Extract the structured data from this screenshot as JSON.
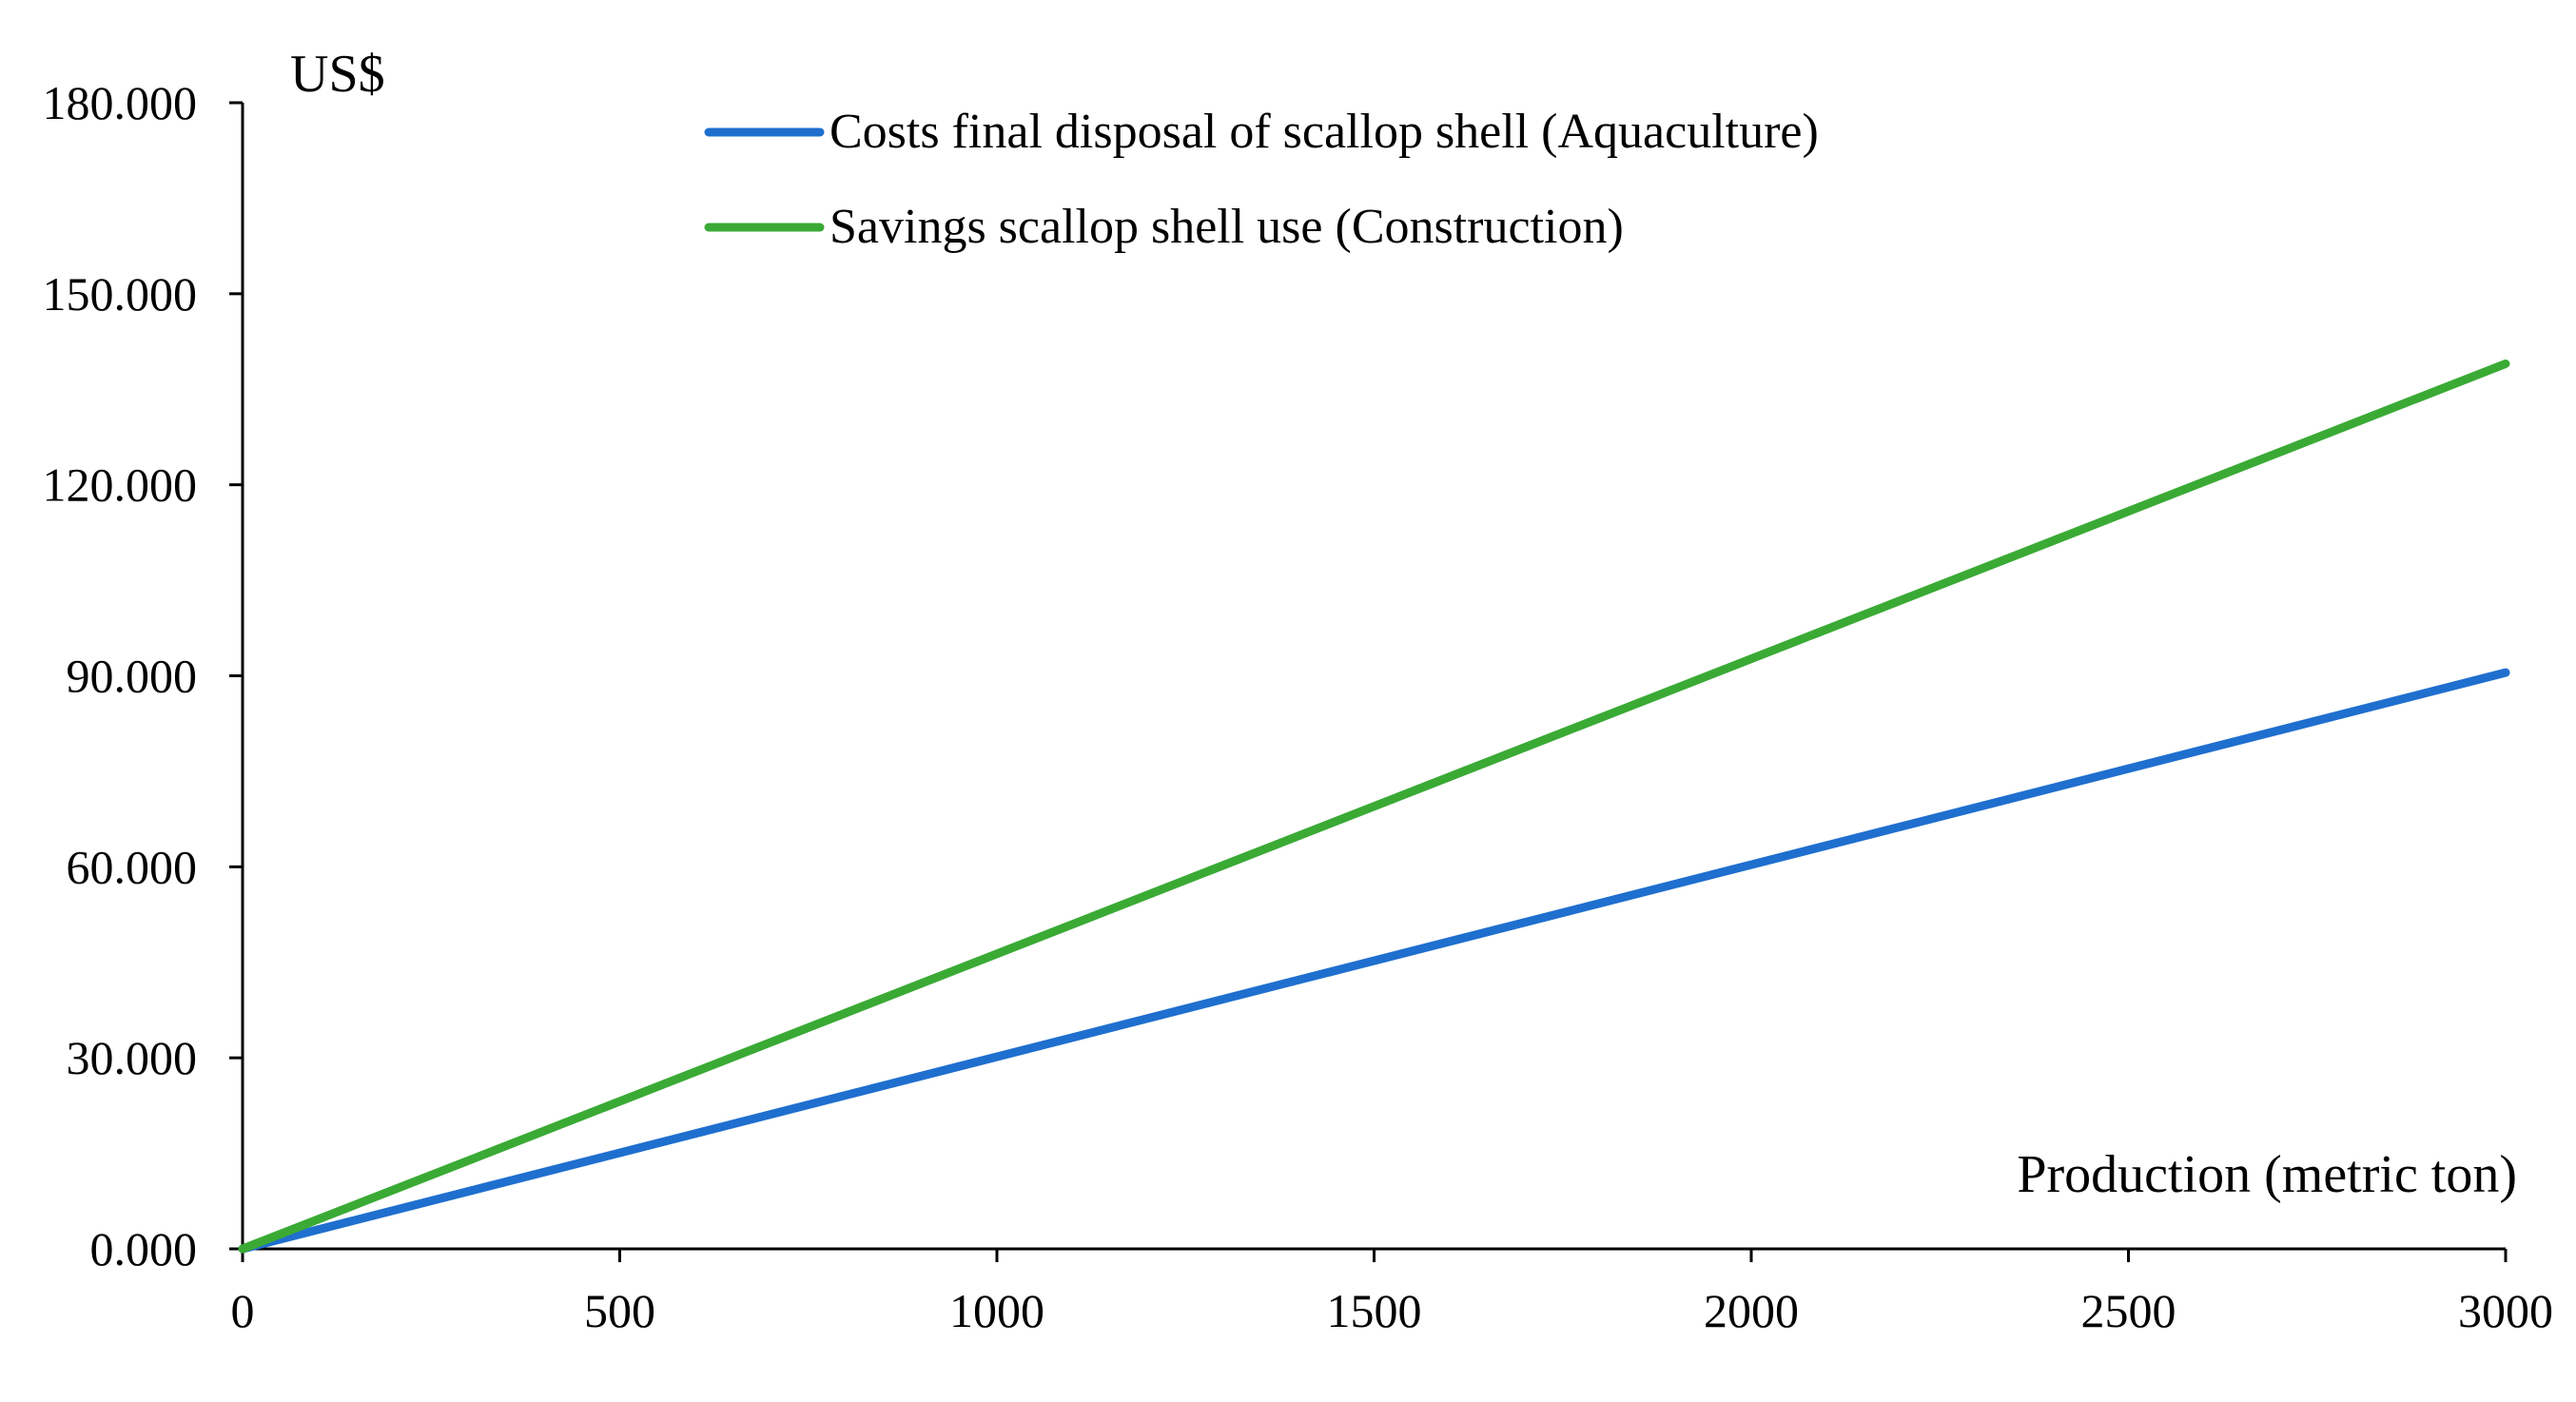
{
  "chart_data": {
    "type": "line",
    "title": "",
    "xlabel": "Production (metric ton)",
    "ylabel": "US$",
    "xlim": [
      0,
      3000
    ],
    "ylim": [
      0,
      180
    ],
    "xticks": [
      0,
      500,
      1000,
      1500,
      2000,
      2500,
      3000
    ],
    "xtick_labels": [
      "0",
      "500",
      "1000",
      "1500",
      "2000",
      "2500",
      "3000"
    ],
    "yticks": [
      0,
      30,
      60,
      90,
      120,
      150,
      180
    ],
    "ytick_labels": [
      "0.000",
      "30.000",
      "60.000",
      "90.000",
      "120.000",
      "150.000",
      "180.000"
    ],
    "grid": false,
    "legend_position": "top-center",
    "series": [
      {
        "name": "Costs final disposal of scallop shell (Aquaculture)",
        "color": "#1f6fcf",
        "x": [
          0,
          3000
        ],
        "values": [
          0,
          90.5
        ]
      },
      {
        "name": "Savings scallop shell use (Construction)",
        "color": "#3aaa35",
        "x": [
          0,
          3000
        ],
        "values": [
          0,
          139
        ]
      }
    ]
  }
}
